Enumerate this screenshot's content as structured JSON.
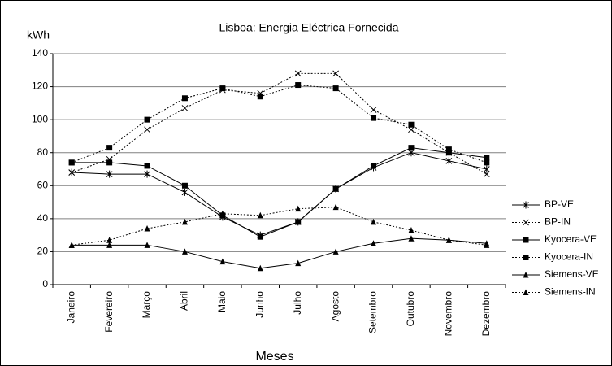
{
  "chart_data": {
    "type": "line",
    "title": "Lisboa: Energia Eléctrica Fornecida",
    "y_label": "kWh",
    "x_label": "Meses",
    "categories": [
      "Janeiro",
      "Fevereiro",
      "Março",
      "Abril",
      "Maio",
      "Junho",
      "Julho",
      "Agosto",
      "Setembro",
      "Outubro",
      "Novembro",
      "Dezembro"
    ],
    "series": [
      {
        "name": "BP-VE",
        "color": "#000000",
        "marker": "star",
        "dashed": false,
        "values": [
          68,
          67,
          67,
          56,
          41,
          30,
          38,
          58,
          71,
          80,
          75,
          70
        ]
      },
      {
        "name": "BP-IN",
        "color": "#000000",
        "marker": "x",
        "dashed": true,
        "values": [
          68,
          76,
          94,
          107,
          118,
          116,
          128,
          128,
          106,
          94,
          80,
          67
        ]
      },
      {
        "name": "Kyocera-VE",
        "color": "#000000",
        "marker": "square",
        "dashed": false,
        "values": [
          74,
          74,
          72,
          60,
          42,
          29,
          38,
          58,
          72,
          83,
          80,
          77
        ]
      },
      {
        "name": "Kyocera-IN",
        "color": "#000000",
        "marker": "square",
        "dashed": true,
        "values": [
          74,
          83,
          100,
          113,
          119,
          114,
          121,
          119,
          101,
          97,
          82,
          74
        ]
      },
      {
        "name": "Siemens-VE",
        "color": "#000000",
        "marker": "triangle",
        "dashed": false,
        "values": [
          24,
          24,
          24,
          20,
          14,
          10,
          13,
          20,
          25,
          28,
          27,
          25
        ]
      },
      {
        "name": "Siemens-IN",
        "color": "#000000",
        "marker": "triangle",
        "dashed": true,
        "values": [
          24,
          27,
          34,
          38,
          43,
          42,
          46,
          47,
          38,
          33,
          27,
          24
        ]
      }
    ],
    "ylim": [
      0,
      140
    ],
    "yticks": [
      0,
      20,
      40,
      60,
      80,
      100,
      120,
      140
    ],
    "grid": true,
    "legend": "right"
  }
}
